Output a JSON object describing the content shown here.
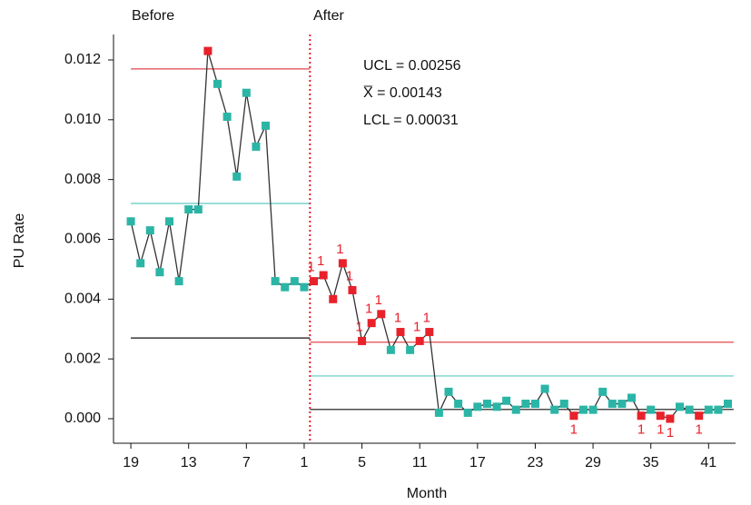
{
  "chart_data": {
    "type": "control",
    "y_label": "PU Rate",
    "x_label": "Month",
    "segment_labels": [
      "Before",
      "After"
    ],
    "annotations": [
      "UCL = 0.00256",
      "X̅ = 0.00143",
      "LCL = 0.00031"
    ],
    "xlim": [
      -1.8,
      62.8
    ],
    "ylim": [
      -0.00082,
      0.01285
    ],
    "xticks": [
      {
        "value": 0,
        "label": "19"
      },
      {
        "value": 6,
        "label": "13"
      },
      {
        "value": 12,
        "label": "7"
      },
      {
        "value": 18,
        "label": "1"
      },
      {
        "value": 24,
        "label": "5"
      },
      {
        "value": 30,
        "label": "11"
      },
      {
        "value": 36,
        "label": "17"
      },
      {
        "value": 42,
        "label": "23"
      },
      {
        "value": 48,
        "label": "29"
      },
      {
        "value": 54,
        "label": "35"
      },
      {
        "value": 60,
        "label": "41"
      }
    ],
    "yticks": [
      {
        "value": 0,
        "label": "0.000"
      },
      0.002,
      0.004,
      0.006,
      0.008,
      {
        "value": 0.01,
        "label": "0.010"
      },
      0.012
    ],
    "divider_x": 18.6,
    "control_limits": [
      {
        "x": [
          0,
          18.6
        ],
        "ucl": 0.0117,
        "mean": 0.0072,
        "lcl": 0.0027
      },
      {
        "x": [
          18.6,
          62.6
        ],
        "ucl": 0.00256,
        "mean": 0.00143,
        "lcl": 0.00031
      }
    ],
    "limit_colors": {
      "ucl": "#e0464b",
      "mean": "#5cc9c0",
      "lcl": "#111111"
    },
    "line_color": "#333333",
    "x": [
      0,
      1,
      2,
      3,
      4,
      5,
      6,
      7,
      8,
      9,
      10,
      11,
      12,
      13,
      14,
      15,
      16,
      17,
      18,
      19,
      20,
      21,
      22,
      23,
      24,
      25,
      26,
      27,
      28,
      29,
      30,
      31,
      32,
      33,
      34,
      35,
      36,
      37,
      38,
      39,
      40,
      41,
      42,
      43,
      44,
      45,
      46,
      47,
      48,
      49,
      50,
      51,
      52,
      53,
      54,
      55,
      56,
      57,
      58,
      59,
      60,
      61,
      62
    ],
    "values": [
      0.0066,
      0.0052,
      0.0063,
      0.0049,
      0.0066,
      0.0046,
      0.007,
      0.007,
      0.0123,
      0.0112,
      0.0101,
      0.0081,
      0.0109,
      0.0091,
      0.0098,
      0.0046,
      0.0044,
      0.0046,
      0.0044,
      0.0046,
      0.0048,
      0.004,
      0.0052,
      0.0043,
      0.0026,
      0.0032,
      0.0035,
      0.0023,
      0.0029,
      0.0023,
      0.0026,
      0.0029,
      0.0002,
      0.0009,
      0.0005,
      0.0002,
      0.0004,
      0.0005,
      0.0004,
      0.0006,
      0.0003,
      0.0005,
      0.0005,
      0.001,
      0.0003,
      0.0005,
      0.0001,
      0.0003,
      0.0003,
      0.0009,
      0.0005,
      0.0005,
      0.0007,
      0.0001,
      0.0003,
      0.0001,
      0,
      0.0004,
      0.0003,
      0.0001,
      0.0003,
      0.0003,
      0.0005
    ],
    "point_colors": [
      "#2bb5a6",
      "#2bb5a6",
      "#2bb5a6",
      "#2bb5a6",
      "#2bb5a6",
      "#2bb5a6",
      "#2bb5a6",
      "#2bb5a6",
      "#e8212b",
      "#2bb5a6",
      "#2bb5a6",
      "#2bb5a6",
      "#2bb5a6",
      "#2bb5a6",
      "#2bb5a6",
      "#2bb5a6",
      "#2bb5a6",
      "#2bb5a6",
      "#2bb5a6",
      "#e8212b",
      "#e8212b",
      "#e8212b",
      "#e8212b",
      "#e8212b",
      "#e8212b",
      "#e8212b",
      "#e8212b",
      "#2bb5a6",
      "#e8212b",
      "#2bb5a6",
      "#e8212b",
      "#e8212b",
      "#2bb5a6",
      "#2bb5a6",
      "#2bb5a6",
      "#2bb5a6",
      "#2bb5a6",
      "#2bb5a6",
      "#2bb5a6",
      "#2bb5a6",
      "#2bb5a6",
      "#2bb5a6",
      "#2bb5a6",
      "#2bb5a6",
      "#2bb5a6",
      "#2bb5a6",
      "#e8212b",
      "#2bb5a6",
      "#2bb5a6",
      "#2bb5a6",
      "#2bb5a6",
      "#2bb5a6",
      "#2bb5a6",
      "#e8212b",
      "#2bb5a6",
      "#e8212b",
      "#e8212b",
      "#2bb5a6",
      "#2bb5a6",
      "#e8212b",
      "#2bb5a6",
      "#2bb5a6",
      "#2bb5a6"
    ],
    "point_labels": [
      null,
      null,
      null,
      null,
      null,
      null,
      null,
      null,
      null,
      null,
      null,
      null,
      null,
      null,
      null,
      null,
      null,
      null,
      null,
      "1",
      "1",
      null,
      "1",
      "1",
      "1",
      "1",
      "1",
      null,
      "1",
      null,
      "1",
      "1",
      null,
      null,
      null,
      null,
      null,
      null,
      null,
      null,
      null,
      null,
      null,
      null,
      null,
      null,
      "1",
      null,
      null,
      null,
      null,
      null,
      null,
      "1",
      null,
      "1",
      "1",
      null,
      null,
      "1",
      null,
      null,
      null
    ]
  }
}
